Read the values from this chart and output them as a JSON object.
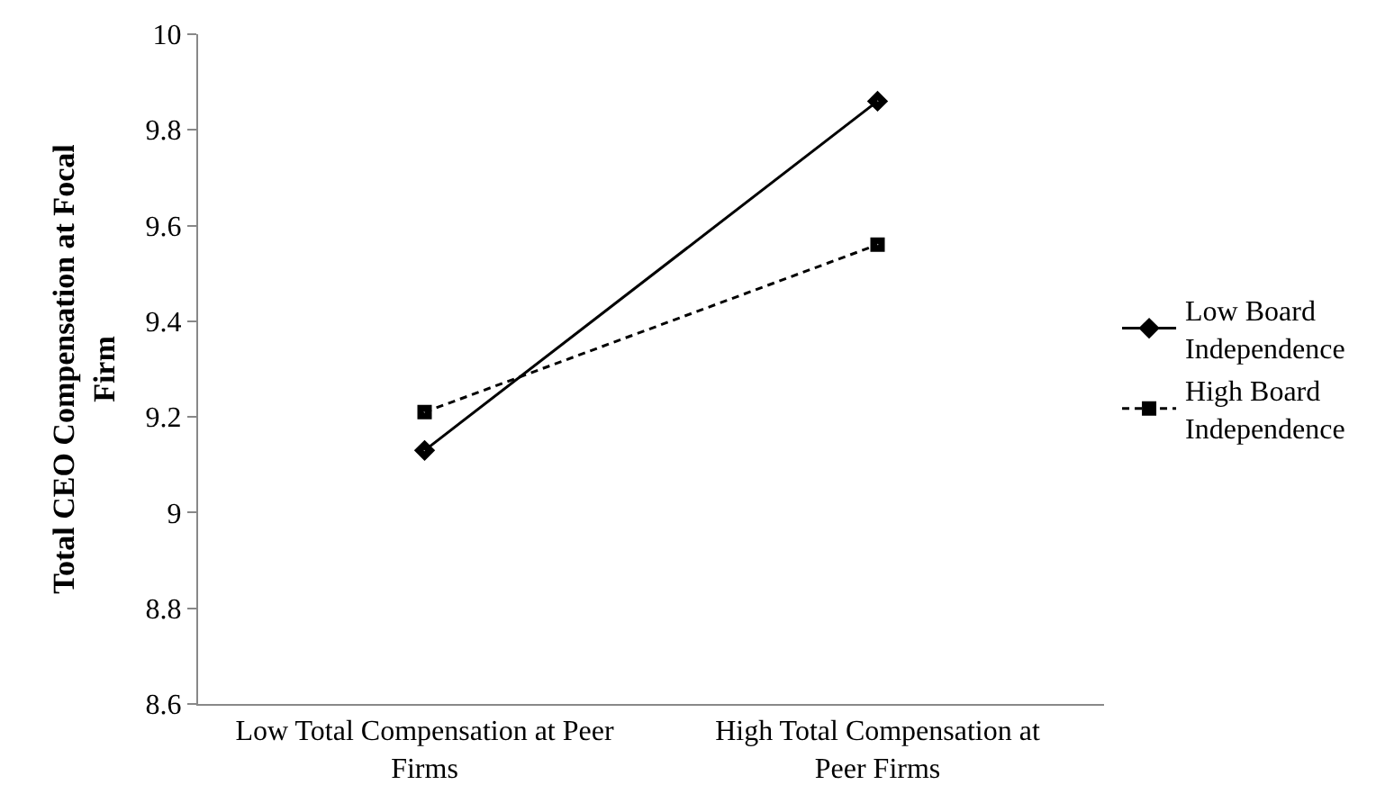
{
  "chart_data": {
    "type": "line",
    "ylabel": "Total CEO Compensation at Focal Firm",
    "categories": [
      "Low Total Compensation at Peer Firms",
      "High Total Compensation at Peer Firms"
    ],
    "series": [
      {
        "name": "Low Board Independence",
        "color": "#000000",
        "values": [
          9.13,
          9.86
        ],
        "marker": "diamond",
        "line_style": "solid"
      },
      {
        "name": "High Board Independence",
        "color": "#000000",
        "values": [
          9.21,
          9.56
        ],
        "marker": "square",
        "line_style": "dashed"
      }
    ],
    "ylim": [
      8.6,
      10
    ],
    "yticks": [
      8.6,
      8.8,
      9,
      9.2,
      9.4,
      9.6,
      9.8,
      10
    ],
    "legend": "right"
  }
}
